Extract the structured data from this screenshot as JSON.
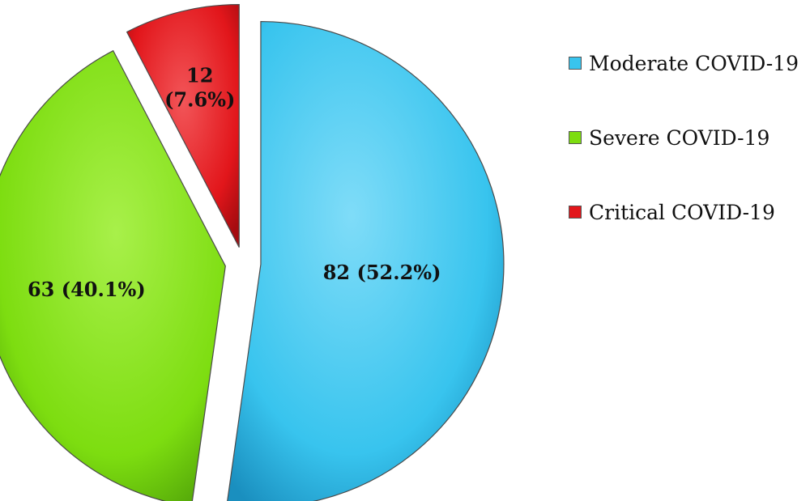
{
  "chart_data": {
    "type": "pie",
    "exploded": true,
    "categories": [
      "Moderate COVID-19",
      "Severe COVID-19",
      "Critical COVID-19"
    ],
    "values": [
      82,
      63,
      12
    ],
    "percentages": [
      52.2,
      40.1,
      7.6
    ],
    "slice_labels": [
      "82 (52.2%)",
      "63 (40.1%)",
      "12"
    ],
    "slice_label_line2": [
      "",
      "",
      "(7.6%)"
    ],
    "colors": [
      "#38c4ee",
      "#7ddd10",
      "#e2161b"
    ],
    "legend": {
      "position": "right",
      "items": [
        "Moderate COVID-19",
        "Severe COVID-19",
        "Critical COVID-19"
      ]
    }
  }
}
